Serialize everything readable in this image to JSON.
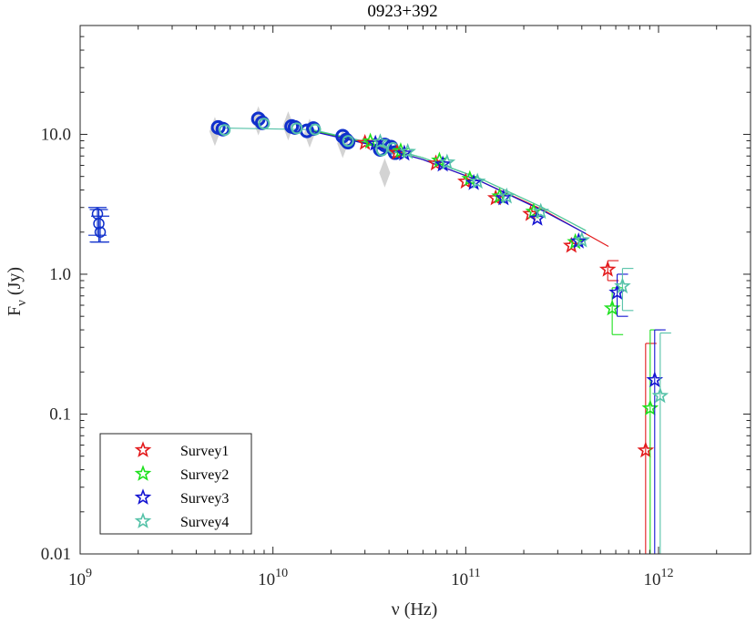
{
  "chart_data": {
    "type": "scatter",
    "title": "0923+392",
    "xlabel": "ν (Hz)",
    "ylabel": "F_ν (Jy)",
    "xscale": "log",
    "yscale": "log",
    "xlim": [
      1000000000.0,
      3000000000000.0
    ],
    "ylim": [
      0.01,
      60
    ],
    "x_tick_labels": [
      {
        "value": 1000000000.0,
        "base": "10",
        "exp": "9"
      },
      {
        "value": 10000000000.0,
        "base": "10",
        "exp": "10"
      },
      {
        "value": 100000000000.0,
        "base": "10",
        "exp": "11"
      },
      {
        "value": 1000000000000.0,
        "base": "10",
        "exp": "12"
      }
    ],
    "y_tick_labels": [
      {
        "value": 0.01,
        "label": "0.01"
      },
      {
        "value": 0.1,
        "label": "0.1"
      },
      {
        "value": 1,
        "label": "1.0"
      },
      {
        "value": 10,
        "label": "10.0"
      }
    ],
    "legend_position": "bottom-left",
    "colors": {
      "survey1": "#e31a1c",
      "survey2": "#1fe01f",
      "survey3": "#1414d2",
      "survey4": "#55c2a8",
      "archival_blue": "#1030cc",
      "archival_gray": "#c8c8c8",
      "axis": "#262626"
    },
    "archival_low": {
      "name": "archival-low-frequency",
      "x": [
        1250000000.0,
        1250000000.0,
        1250000000.0
      ],
      "y": [
        2.7,
        2.3,
        2.0
      ],
      "yerr_low": [
        1.9,
        1.7,
        1.7
      ],
      "yerr_high": [
        3.0,
        2.9,
        2.6
      ]
    },
    "archival_radio": {
      "name": "archival-radio-circles",
      "x": [
        5200000000.0,
        5500000000.0,
        8400000000.0,
        8800000000.0,
        12500000000.0,
        13000000000.0,
        15000000000.0,
        16200000000.0,
        23000000000.0,
        24000000000.0,
        24500000000.0,
        36000000000.0,
        38000000000.0,
        41000000000.0,
        43000000000.0
      ],
      "y": [
        11.2,
        10.9,
        12.9,
        12.1,
        11.4,
        11.2,
        10.6,
        11.0,
        9.7,
        9.1,
        8.8,
        7.8,
        8.4,
        8.1,
        7.4
      ]
    },
    "archival_gray": {
      "name": "archival-gray-diamonds",
      "x": [
        5000000000.0,
        8400000000.0,
        12000000000.0,
        15500000000.0,
        23000000000.0,
        38000000000.0
      ],
      "y": [
        10.5,
        12.5,
        11.5,
        10.2,
        8.6,
        5.3
      ]
    },
    "series": [
      {
        "name": "Survey1",
        "color": "#e31a1c",
        "x": [
          30000000000.0,
          44000000000.0,
          70000000000.0,
          100000000000.0,
          143000000000.0,
          217000000000.0,
          353000000000.0,
          545000000000.0,
          857000000000.0
        ],
        "y": [
          8.7,
          7.4,
          6.2,
          4.6,
          3.5,
          2.7,
          1.6,
          1.08,
          0.055
        ],
        "err_low": [
          null,
          null,
          null,
          null,
          null,
          null,
          null,
          0.9,
          0.01
        ],
        "err_high": [
          null,
          null,
          null,
          null,
          null,
          null,
          null,
          1.25,
          0.32
        ]
      },
      {
        "name": "Survey2",
        "color": "#1fe01f",
        "x": [
          32000000000.0,
          46000000000.0,
          73000000000.0,
          105000000000.0,
          150000000000.0,
          225000000000.0,
          370000000000.0,
          575000000000.0,
          905000000000.0
        ],
        "y": [
          8.9,
          7.6,
          6.5,
          4.8,
          3.6,
          2.8,
          1.7,
          0.57,
          0.11
        ],
        "err_low": [
          null,
          null,
          null,
          null,
          null,
          null,
          null,
          0.37,
          0.01
        ],
        "err_high": [
          null,
          null,
          null,
          null,
          null,
          null,
          null,
          0.8,
          0.4
        ]
      },
      {
        "name": "Survey3",
        "color": "#1414d2",
        "x": [
          34000000000.0,
          48000000000.0,
          76000000000.0,
          110000000000.0,
          157000000000.0,
          235000000000.0,
          385000000000.0,
          610000000000.0,
          955000000000.0
        ],
        "y": [
          8.6,
          7.3,
          6.1,
          4.5,
          3.5,
          2.5,
          1.72,
          0.74,
          0.175
        ],
        "err_low": [
          null,
          null,
          null,
          null,
          null,
          null,
          null,
          0.5,
          0.01
        ],
        "err_high": [
          null,
          null,
          null,
          null,
          null,
          null,
          null,
          1.0,
          0.4
        ]
      },
      {
        "name": "Survey4",
        "color": "#55c2a8",
        "x": [
          36000000000.0,
          50000000000.0,
          80000000000.0,
          115000000000.0,
          163000000000.0,
          245000000000.0,
          400000000000.0,
          650000000000.0,
          1020000000000.0
        ],
        "y": [
          8.8,
          7.5,
          6.3,
          4.6,
          3.6,
          2.8,
          1.75,
          0.82,
          0.135
        ],
        "err_low": [
          null,
          null,
          null,
          null,
          null,
          null,
          null,
          0.55,
          0.01
        ],
        "err_high": [
          null,
          null,
          null,
          null,
          null,
          null,
          null,
          1.1,
          0.38
        ]
      }
    ],
    "fits": [
      {
        "name": "fit-survey1",
        "color": "#e31a1c",
        "x": [
          16000000000.0,
          30000000000.0,
          60000000000.0,
          120000000000.0,
          250000000000.0,
          550000000000.0
        ],
        "y": [
          10.6,
          8.7,
          6.6,
          4.6,
          2.9,
          1.58
        ]
      },
      {
        "name": "fit-survey2",
        "color": "#1fe01f",
        "x": [
          16000000000.0,
          30000000000.0,
          60000000000.0,
          120000000000.0,
          250000000000.0,
          420000000000.0
        ],
        "y": [
          10.7,
          8.8,
          6.8,
          4.8,
          3.0,
          2.05
        ]
      },
      {
        "name": "fit-survey3",
        "color": "#1414d2",
        "x": [
          16000000000.0,
          30000000000.0,
          60000000000.0,
          120000000000.0,
          250000000000.0,
          420000000000.0
        ],
        "y": [
          10.5,
          8.6,
          6.6,
          4.6,
          2.85,
          1.95
        ]
      },
      {
        "name": "fit-survey4",
        "color": "#55c2a8",
        "x": [
          5500000000.0,
          16000000000.0,
          30000000000.0,
          60000000000.0,
          120000000000.0,
          250000000000.0,
          420000000000.0
        ],
        "y": [
          11.1,
          10.8,
          8.9,
          6.8,
          4.8,
          3.0,
          2.05
        ]
      }
    ]
  }
}
